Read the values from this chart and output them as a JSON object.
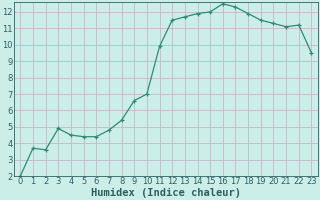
{
  "x": [
    0,
    1,
    2,
    3,
    4,
    5,
    6,
    7,
    8,
    9,
    10,
    11,
    12,
    13,
    14,
    15,
    16,
    17,
    18,
    19,
    20,
    21,
    22,
    23
  ],
  "y": [
    2.0,
    3.7,
    3.6,
    4.9,
    4.5,
    4.4,
    4.4,
    4.8,
    5.4,
    6.6,
    7.0,
    9.9,
    11.5,
    11.7,
    11.9,
    12.0,
    12.5,
    12.3,
    11.9,
    11.5,
    11.3,
    11.1,
    11.2,
    9.5
  ],
  "xlabel": "Humidex (Indice chaleur)",
  "line_color": "#2e8b74",
  "marker": "+",
  "marker_color": "#2e8b74",
  "bg_color": "#cceee8",
  "grid_color": "#c4b8c8",
  "ylim": [
    2,
    12.6
  ],
  "xlim": [
    -0.5,
    23.5
  ],
  "yticks": [
    2,
    3,
    4,
    5,
    6,
    7,
    8,
    9,
    10,
    11,
    12
  ],
  "xticks": [
    0,
    1,
    2,
    3,
    4,
    5,
    6,
    7,
    8,
    9,
    10,
    11,
    12,
    13,
    14,
    15,
    16,
    17,
    18,
    19,
    20,
    21,
    22,
    23
  ],
  "tick_fontsize": 6,
  "xlabel_fontsize": 7.5
}
